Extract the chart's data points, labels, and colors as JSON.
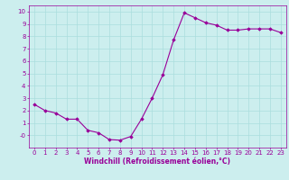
{
  "x": [
    0,
    1,
    2,
    3,
    4,
    5,
    6,
    7,
    8,
    9,
    10,
    11,
    12,
    13,
    14,
    15,
    16,
    17,
    18,
    19,
    20,
    21,
    22,
    23
  ],
  "y": [
    2.5,
    2.0,
    1.8,
    1.3,
    1.3,
    0.4,
    0.2,
    -0.35,
    -0.4,
    -0.1,
    1.3,
    3.0,
    4.9,
    7.7,
    9.9,
    9.5,
    9.1,
    8.9,
    8.5,
    8.5,
    8.6,
    8.6,
    8.6,
    8.3
  ],
  "line_color": "#990099",
  "marker": "D",
  "marker_size": 1.8,
  "bg_color": "#cceeee",
  "grid_color": "#aadddd",
  "xlabel": "Windchill (Refroidissement éolien,°C)",
  "xlim": [
    -0.5,
    23.5
  ],
  "ylim": [
    -1.0,
    10.5
  ],
  "yticks": [
    0,
    1,
    2,
    3,
    4,
    5,
    6,
    7,
    8,
    9,
    10
  ],
  "ytick_labels": [
    "-0",
    "1",
    "2",
    "3",
    "4",
    "5",
    "6",
    "7",
    "8",
    "9",
    "10"
  ],
  "xticks": [
    0,
    1,
    2,
    3,
    4,
    5,
    6,
    7,
    8,
    9,
    10,
    11,
    12,
    13,
    14,
    15,
    16,
    17,
    18,
    19,
    20,
    21,
    22,
    23
  ],
  "tick_color": "#990099",
  "label_color": "#990099",
  "xlabel_fontsize": 5.5,
  "tick_fontsize": 5.0,
  "linewidth": 0.8
}
